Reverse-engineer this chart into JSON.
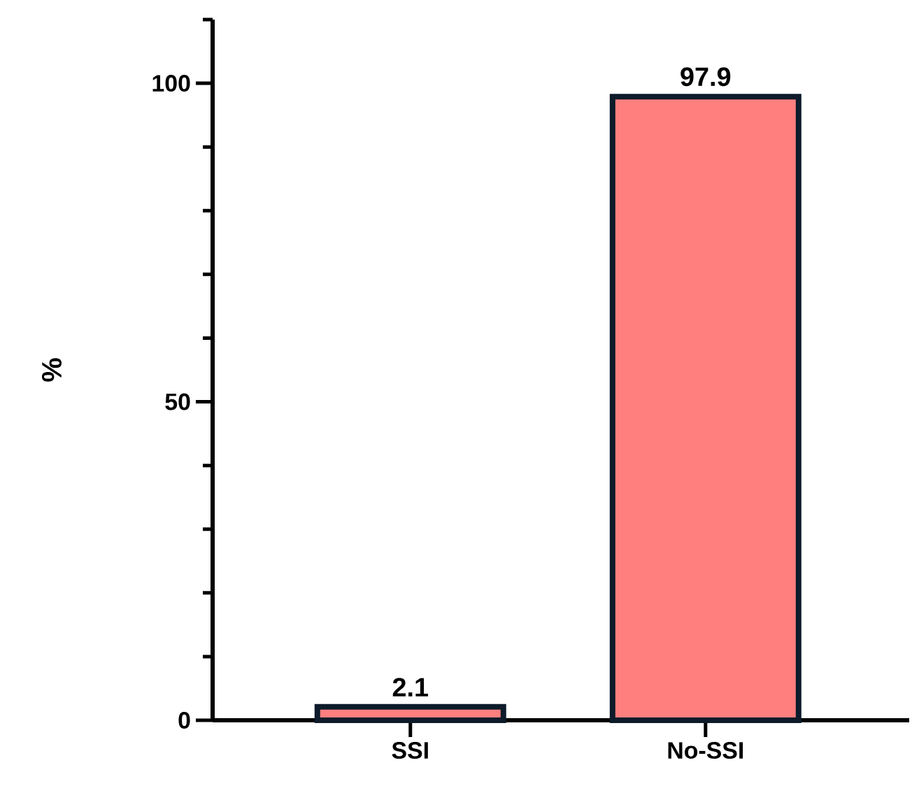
{
  "chart_data": {
    "type": "bar",
    "ylabel": "%",
    "categories": [
      "SSI",
      "No-SSI"
    ],
    "values": [
      2.1,
      97.9
    ],
    "color": "#ff7f7f",
    "data_labels": true,
    "ylim": [
      0,
      110
    ],
    "yticks": [
      0,
      {
        "value": 10,
        "label": null
      },
      {
        "value": 20,
        "label": null
      },
      {
        "value": 30,
        "label": null
      },
      {
        "value": 40,
        "label": null
      },
      50,
      {
        "value": 60,
        "label": null
      },
      {
        "value": 70,
        "label": null
      },
      {
        "value": 80,
        "label": null
      },
      {
        "value": 90,
        "label": null
      },
      100,
      {
        "value": 110,
        "label": null
      }
    ],
    "grid": false
  }
}
